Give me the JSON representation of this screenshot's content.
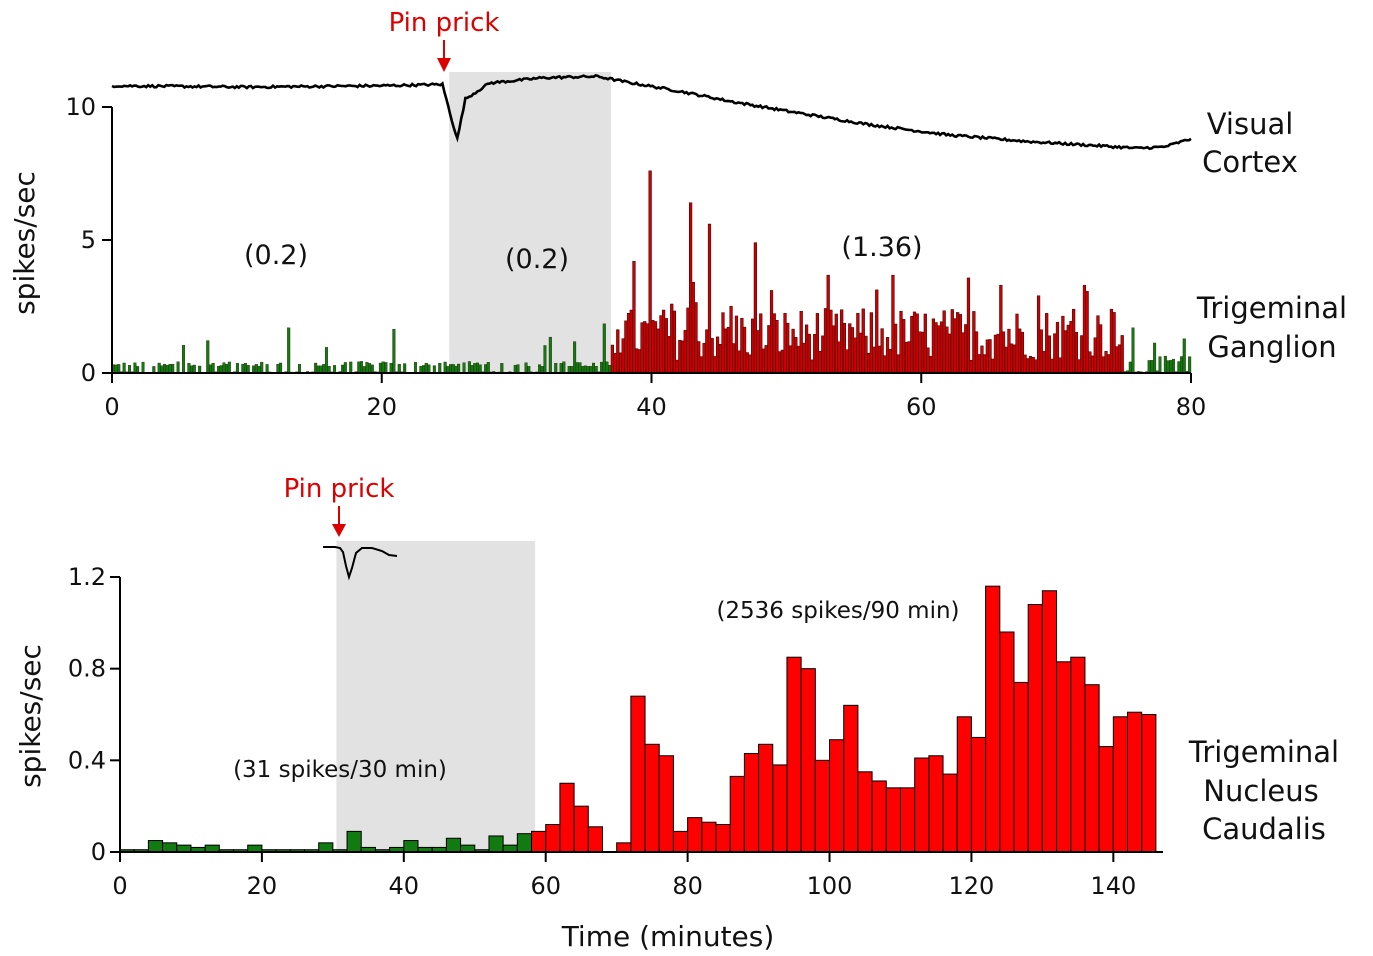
{
  "colors": {
    "green": "#117a11",
    "red_a": "#cc0000",
    "red_b": "#ff0000",
    "shade": "#e2e2e2",
    "annotation_red": "#dd0000",
    "trace": "#000000"
  },
  "chart_data": [
    {
      "type": "bar",
      "panel": "top",
      "title": "",
      "xlabel": "",
      "ylabel": "spikes/sec",
      "xlim": [
        0,
        80
      ],
      "ylim": [
        0,
        10
      ],
      "x_ticks": [
        "0",
        "20",
        "40",
        "60",
        "80"
      ],
      "y_ticks": [
        "0",
        "5",
        "10"
      ],
      "bin_minutes": 0.2,
      "shaded_interval": [
        25,
        37
      ],
      "stimulus": {
        "label": "Pin prick",
        "time": 24.5
      },
      "annotations": [
        "(0.2)",
        "(0.2)",
        "(1.36)"
      ],
      "trace_labels": [
        {
          "line1": "Visual",
          "line2": "Cortex"
        },
        {
          "line1": "Trigeminal",
          "line2": "Ganglion"
        }
      ],
      "series": [
        {
          "color": "green",
          "range": [
            0,
            37
          ],
          "approx_mean": 0.2,
          "peaks": [
            {
              "x": 13.0,
              "y": 1.7
            },
            {
              "x": 20.9,
              "y": 1.65
            },
            {
              "x": 36.4,
              "y": 1.85
            }
          ]
        },
        {
          "color": "red",
          "range": [
            37,
            75
          ],
          "approx_mean": 1.36,
          "peaks": [
            {
              "x": 39.8,
              "y": 7.6
            },
            {
              "x": 42.8,
              "y": 6.4
            },
            {
              "x": 44.3,
              "y": 5.6
            },
            {
              "x": 47.6,
              "y": 4.9
            },
            {
              "x": 38.5,
              "y": 4.2
            },
            {
              "x": 65.8,
              "y": 3.3
            },
            {
              "x": 72.0,
              "y": 3.3
            },
            {
              "x": 74.0,
              "y": 2.4
            }
          ]
        },
        {
          "color": "green",
          "range": [
            75,
            80
          ],
          "approx_mean": 0.3,
          "peaks": [
            {
              "x": 75.6,
              "y": 1.7
            }
          ]
        }
      ],
      "visual_cortex_trace": [
        [
          0,
          10.8
        ],
        [
          10,
          10.75
        ],
        [
          20,
          10.8
        ],
        [
          24.5,
          10.85
        ],
        [
          25.2,
          9.5
        ],
        [
          25.6,
          8.8
        ],
        [
          26.2,
          10.3
        ],
        [
          28,
          10.9
        ],
        [
          32,
          11.1
        ],
        [
          36,
          11.15
        ],
        [
          38,
          10.95
        ],
        [
          42,
          10.6
        ],
        [
          46,
          10.2
        ],
        [
          50,
          9.85
        ],
        [
          56,
          9.35
        ],
        [
          62,
          8.95
        ],
        [
          68,
          8.7
        ],
        [
          72,
          8.58
        ],
        [
          76,
          8.45
        ],
        [
          78,
          8.5
        ],
        [
          80,
          8.8
        ]
      ]
    },
    {
      "type": "bar",
      "panel": "bottom",
      "title": "",
      "xlabel": "Time (minutes)",
      "ylabel": "spikes/sec",
      "xlim": [
        0,
        147
      ],
      "ylim": [
        0,
        1.2
      ],
      "x_ticks": [
        "0",
        "20",
        "40",
        "60",
        "80",
        "100",
        "120",
        "140"
      ],
      "y_ticks": [
        "0",
        "0.4",
        "0.8",
        "1.2"
      ],
      "bin_minutes": 2,
      "shaded_interval": [
        30.5,
        58.5
      ],
      "stimulus": {
        "label": "Pin prick",
        "time": 30.5
      },
      "annotations": [
        "(31 spikes/30 min)",
        "(2536 spikes/90 min)"
      ],
      "trace_label": {
        "line1": "Trigeminal",
        "line2": "Nucleus",
        "line3": "Caudalis"
      },
      "series": [
        {
          "color": "green",
          "x_start": [
            0,
            2,
            4,
            6,
            8,
            10,
            12,
            14,
            16,
            18,
            20,
            22,
            24,
            26,
            28,
            30,
            32,
            34,
            36,
            38,
            40,
            42,
            44,
            46,
            48,
            50,
            52,
            54,
            56
          ],
          "values": [
            0.01,
            0.01,
            0.05,
            0.04,
            0.03,
            0.02,
            0.03,
            0.01,
            0.01,
            0.03,
            0.01,
            0.01,
            0.01,
            0.01,
            0.04,
            0.01,
            0.09,
            0.02,
            0.01,
            0.02,
            0.05,
            0.02,
            0.02,
            0.06,
            0.03,
            0.01,
            0.07,
            0.03,
            0.08
          ]
        },
        {
          "color": "red",
          "x_start": [
            58,
            60,
            62,
            64,
            66,
            68,
            70,
            72,
            74,
            76,
            78,
            80,
            82,
            84,
            86,
            88,
            90,
            92,
            94,
            96,
            98,
            100,
            102,
            104,
            106,
            108,
            110,
            112,
            114,
            116,
            118,
            120,
            122,
            124,
            126,
            128,
            130,
            132,
            134,
            136,
            138,
            140,
            142,
            144
          ],
          "values": [
            0.09,
            0.12,
            0.3,
            0.2,
            0.11,
            0.0,
            0.04,
            0.68,
            0.47,
            0.42,
            0.09,
            0.15,
            0.13,
            0.12,
            0.33,
            0.43,
            0.47,
            0.38,
            0.85,
            0.8,
            0.4,
            0.49,
            0.64,
            0.35,
            0.31,
            0.28,
            0.28,
            0.41,
            0.42,
            0.34,
            0.59,
            0.5,
            1.16,
            0.96,
            0.74,
            1.08,
            1.14,
            0.83,
            0.85,
            0.73,
            0.46,
            0.59,
            0.61,
            0.6
          ]
        }
      ]
    }
  ]
}
